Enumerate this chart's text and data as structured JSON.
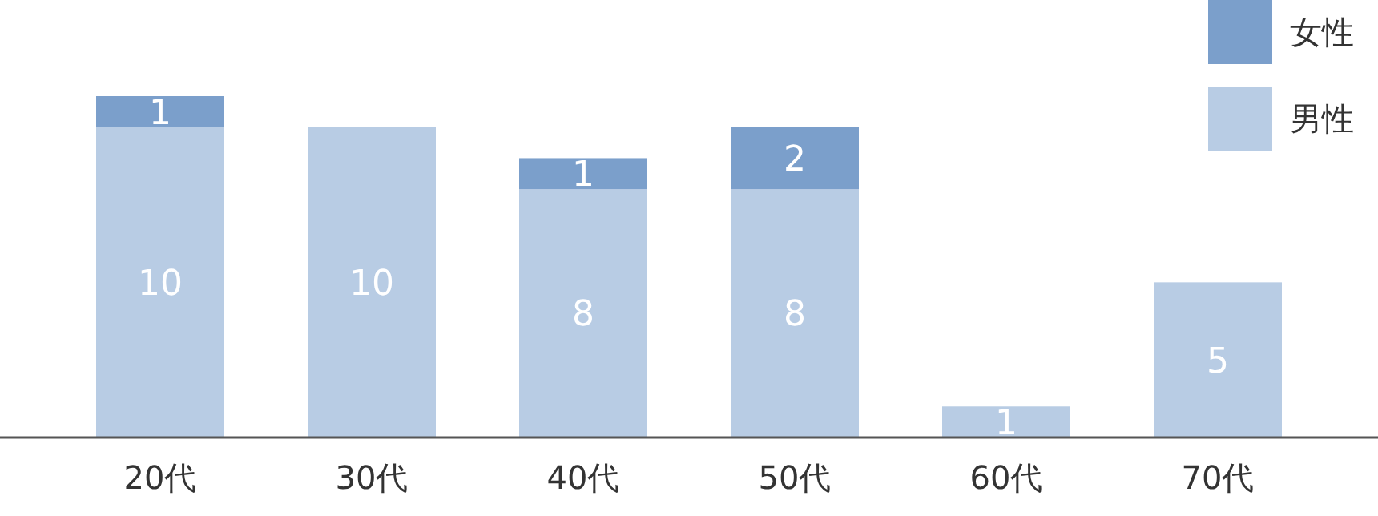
{
  "chart_data": {
    "type": "bar",
    "stacked": true,
    "data_labels": true,
    "legend": "top right",
    "grid": false,
    "categories": [
      "20代",
      "30代",
      "40代",
      "50代",
      "60代",
      "70代"
    ],
    "series": [
      {
        "name": "男性",
        "color": "#b8cce4",
        "values": [
          10,
          10,
          8,
          8,
          1,
          5
        ]
      },
      {
        "name": "女性",
        "color": "#7b9fcb",
        "values": [
          1,
          null,
          1,
          2,
          null,
          null
        ]
      }
    ]
  }
}
